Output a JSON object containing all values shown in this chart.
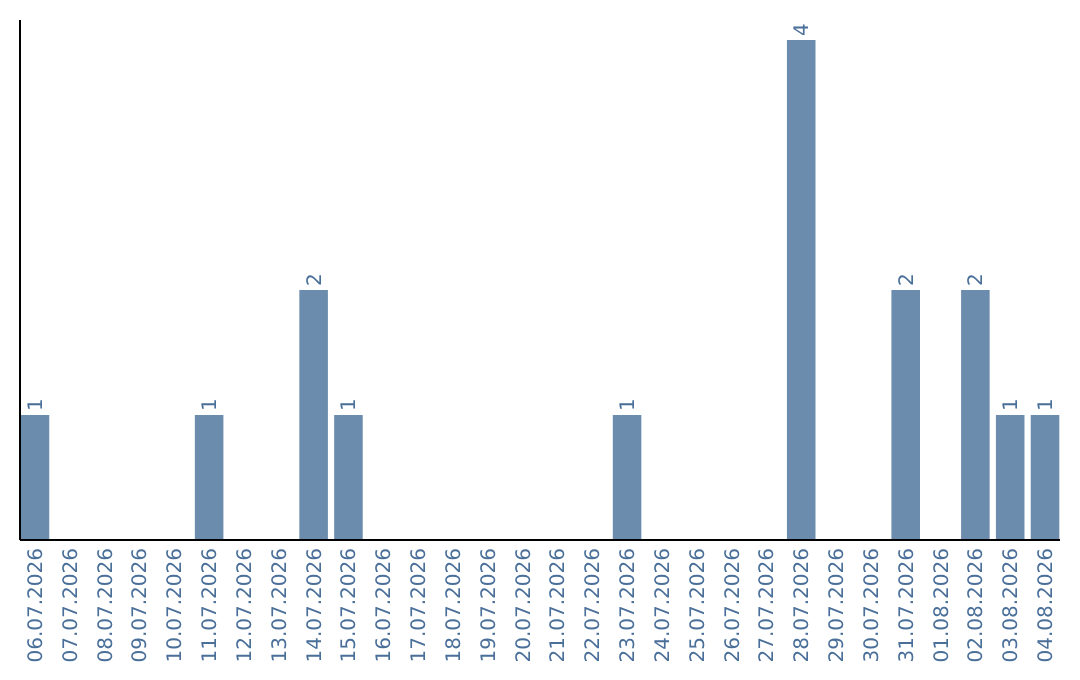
{
  "chart_data": {
    "type": "bar",
    "categories": [
      "06.07.2026",
      "07.07.2026",
      "08.07.2026",
      "09.07.2026",
      "10.07.2026",
      "11.07.2026",
      "12.07.2026",
      "13.07.2026",
      "14.07.2026",
      "15.07.2026",
      "16.07.2026",
      "17.07.2026",
      "18.07.2026",
      "19.07.2026",
      "20.07.2026",
      "21.07.2026",
      "22.07.2026",
      "23.07.2026",
      "24.07.2026",
      "25.07.2026",
      "26.07.2026",
      "27.07.2026",
      "28.07.2026",
      "29.07.2026",
      "30.07.2026",
      "31.07.2026",
      "01.08.2026",
      "02.08.2026",
      "03.08.2026",
      "04.08.2026"
    ],
    "values": [
      1,
      0,
      0,
      0,
      0,
      1,
      0,
      0,
      2,
      1,
      0,
      0,
      0,
      0,
      0,
      0,
      0,
      1,
      0,
      0,
      0,
      0,
      4,
      0,
      0,
      2,
      0,
      2,
      1,
      1
    ],
    "value_labels": [
      "1",
      null,
      null,
      null,
      null,
      "1",
      null,
      null,
      "2",
      "1",
      null,
      null,
      null,
      null,
      null,
      null,
      null,
      "1",
      null,
      null,
      null,
      null,
      "4",
      null,
      null,
      "2",
      null,
      "2",
      "1",
      "1"
    ],
    "color": "#6b8cac",
    "ylim": [
      0,
      4.16
    ],
    "tick_labels": "x"
  }
}
